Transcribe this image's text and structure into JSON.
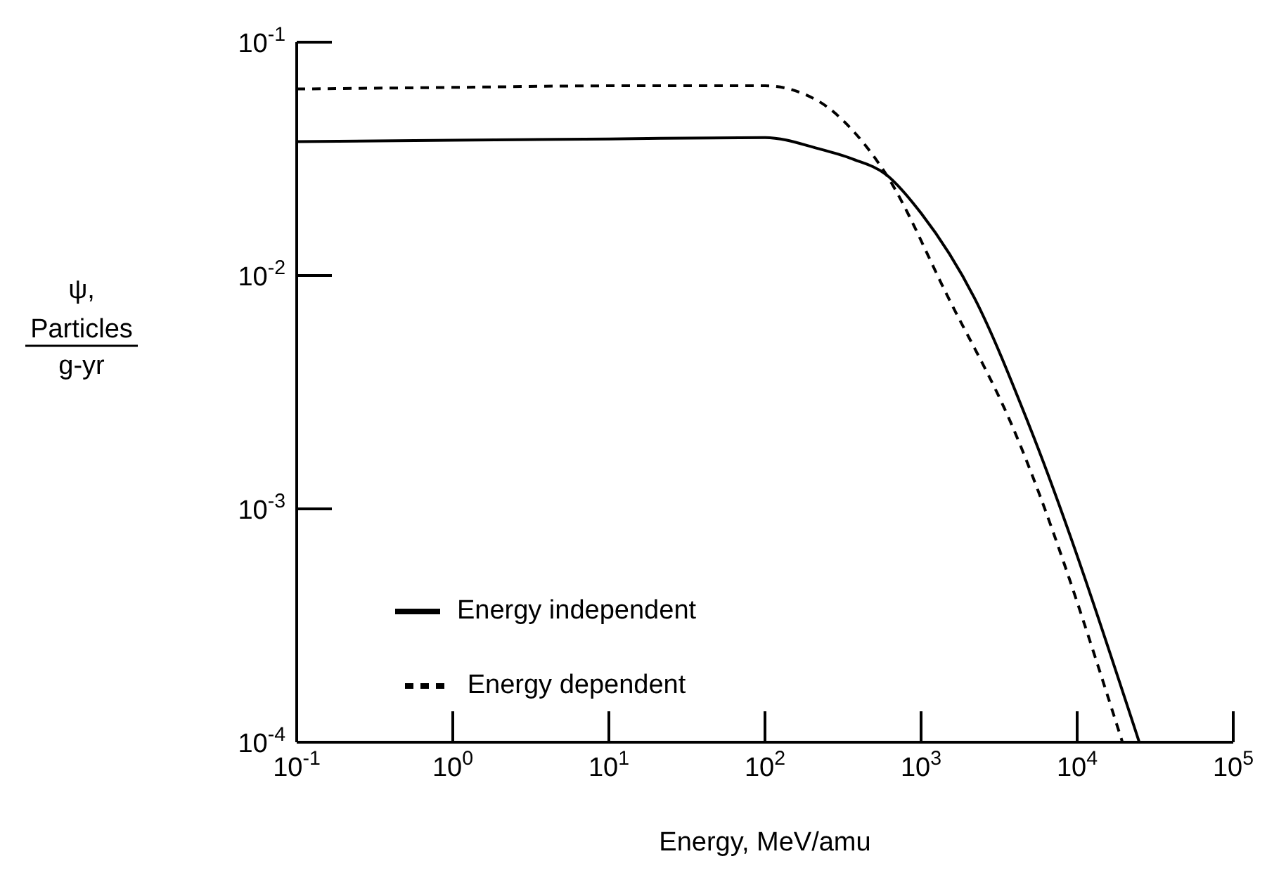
{
  "chart_data": {
    "type": "line",
    "xlabel": "Energy, MeV/amu",
    "ylabel": "ψ, Particles/g-yr",
    "log": "xy",
    "grid": false,
    "legend": "bottom left",
    "marker": "none",
    "xlim": [
      0.1,
      100000
    ],
    "ylim": [
      0.0001,
      0.1
    ],
    "xticks": [
      {
        "value": 0.1,
        "label": "10$^{-1}$"
      },
      {
        "value": 1,
        "label": "10$^{0}$"
      },
      {
        "value": 10,
        "label": "10$^{1}$"
      },
      {
        "value": 100,
        "label": "10$^{2}$"
      },
      {
        "value": 1000,
        "label": "10$^{3}$"
      },
      {
        "value": 10000,
        "label": "10$^{4}$"
      },
      {
        "value": 100000,
        "label": "10$^{5}$"
      }
    ],
    "yticks": [
      {
        "value": 0.0001,
        "label": "10$^{-4}$"
      },
      {
        "value": 0.001,
        "label": "10$^{-3}$"
      },
      {
        "value": 0.01,
        "label": "10$^{-2}$"
      },
      {
        "value": 0.1,
        "label": "10$^{-1}$"
      }
    ],
    "series": [
      {
        "name": "Energy independent",
        "color": "#000000",
        "line_style": "solid",
        "x": [
          0.1,
          1,
          10,
          100,
          219,
          363,
          600,
          1000,
          2200,
          4900,
          25000
        ],
        "values": [
          0.0375,
          0.038,
          0.0385,
          0.039,
          0.035,
          0.0316,
          0.027,
          0.0185,
          0.008,
          0.0023,
          0.0001
        ]
      },
      {
        "name": "Energy dependent",
        "color": "#000000",
        "line_style": "dashed",
        "x": [
          0.1,
          1,
          10,
          100,
          219,
          363,
          600,
          1500,
          3800,
          19500
        ],
        "values": [
          0.063,
          0.064,
          0.065,
          0.065,
          0.056,
          0.042,
          0.027,
          0.008,
          0.0023,
          0.0001
        ]
      }
    ]
  }
}
